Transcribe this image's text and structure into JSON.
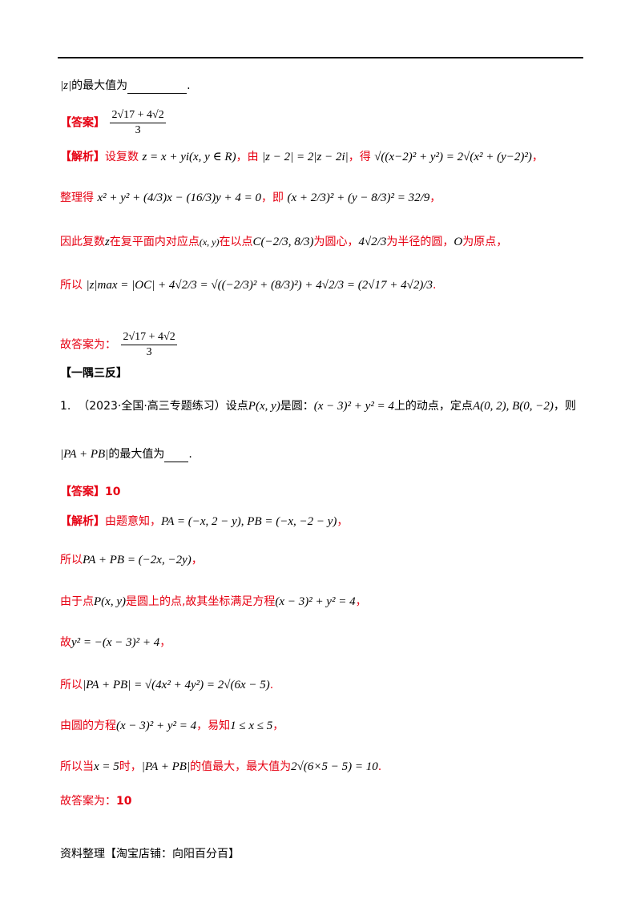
{
  "top_line": {
    "expr": "|z|",
    "text": "的最大值为",
    "period": "."
  },
  "answer1": {
    "tag": "【答案】",
    "num": "2√17 + 4√2",
    "den": "3"
  },
  "analysis1": {
    "tag": "【解析】",
    "l1_a": "设复数",
    "l1_expr1": "z = x + yi(x, y ∈ R)",
    "l1_b": "，由",
    "l1_expr2": "|z − 2| = 2|z − 2i|",
    "l1_c": "，得",
    "l1_expr3": "√((x−2)² + y²) = 2√(x² + (y−2)²)",
    "l1_d": "，",
    "l2_a": "整理得",
    "l2_expr1": "x² + y² + (4/3)x − (16/3)y + 4 = 0",
    "l2_b": "，即",
    "l2_expr2": "(x + 2/3)² + (y − 8/3)² = 32/9",
    "l2_c": "，",
    "l3_a": "因此复数",
    "l3_z": "z",
    "l3_b": "在复平面内对应点",
    "l3_pt": "(x, y)",
    "l3_c": "在以点",
    "l3_center": "C(−2/3, 8/3)",
    "l3_d": "为圆心，",
    "l3_r": "4√2/3",
    "l3_e": "为半径的圆，",
    "l3_o": "O",
    "l3_f": "为原点，",
    "l4_a": "所以",
    "l4_expr": "|z|max = |OC| + 4√2/3 = √((−2/3)² + (8/3)²) + 4√2/3 = (2√17 + 4√2)/3",
    "l4_b": ".",
    "final_label": "故答案为：",
    "final_num": "2√17 + 4√2",
    "final_den": "3"
  },
  "section_title": "【一隅三反】",
  "q1": {
    "num": "1.",
    "source": "（2023·全国·高三专题练习）",
    "a": "设点",
    "p": "P(x, y)",
    "b": "是圆：",
    "circle": "(x − 3)² + y² = 4",
    "c": "上的动点，定点",
    "pts": "A(0, 2), B(0, −2)",
    "d": "，则",
    "expr": "|PA + PB|",
    "e": "的最大值为",
    "period": "."
  },
  "answer2": {
    "tag": "【答案】",
    "value": "10"
  },
  "analysis2": {
    "tag": "【解析】",
    "l1_a": "由题意知，",
    "l1_expr": "PA = (−x, 2 − y), PB = (−x, −2 − y)",
    "l1_b": "，",
    "l2_a": "所以",
    "l2_expr": "PA + PB = (−2x, −2y)",
    "l2_b": "，",
    "l3_a": "由于点",
    "l3_p": "P(x, y)",
    "l3_b": "是圆上的点,故其坐标满足方程",
    "l3_eq": "(x − 3)² + y² = 4",
    "l3_c": "，",
    "l4_a": "故",
    "l4_expr": "y² = −(x − 3)² + 4",
    "l4_b": "，",
    "l5_a": "所以",
    "l5_expr": "|PA + PB| = √(4x² + 4y²) = 2√(6x − 5)",
    "l5_b": ".",
    "l6_a": "由圆的方程",
    "l6_eq": "(x − 3)² + y² = 4",
    "l6_b": "，易知",
    "l6_range": "1 ≤ x ≤ 5",
    "l6_c": "，",
    "l7_a": "所以当",
    "l7_x": "x = 5",
    "l7_b": "时，",
    "l7_expr": "|PA + PB|",
    "l7_c": "的值最大，最大值为",
    "l7_val": "2√(6×5 − 5) = 10",
    "l7_d": ".",
    "final_label": "故答案为：",
    "final_value": "10"
  },
  "footer": "资料整理【淘宝店铺：向阳百分百】"
}
